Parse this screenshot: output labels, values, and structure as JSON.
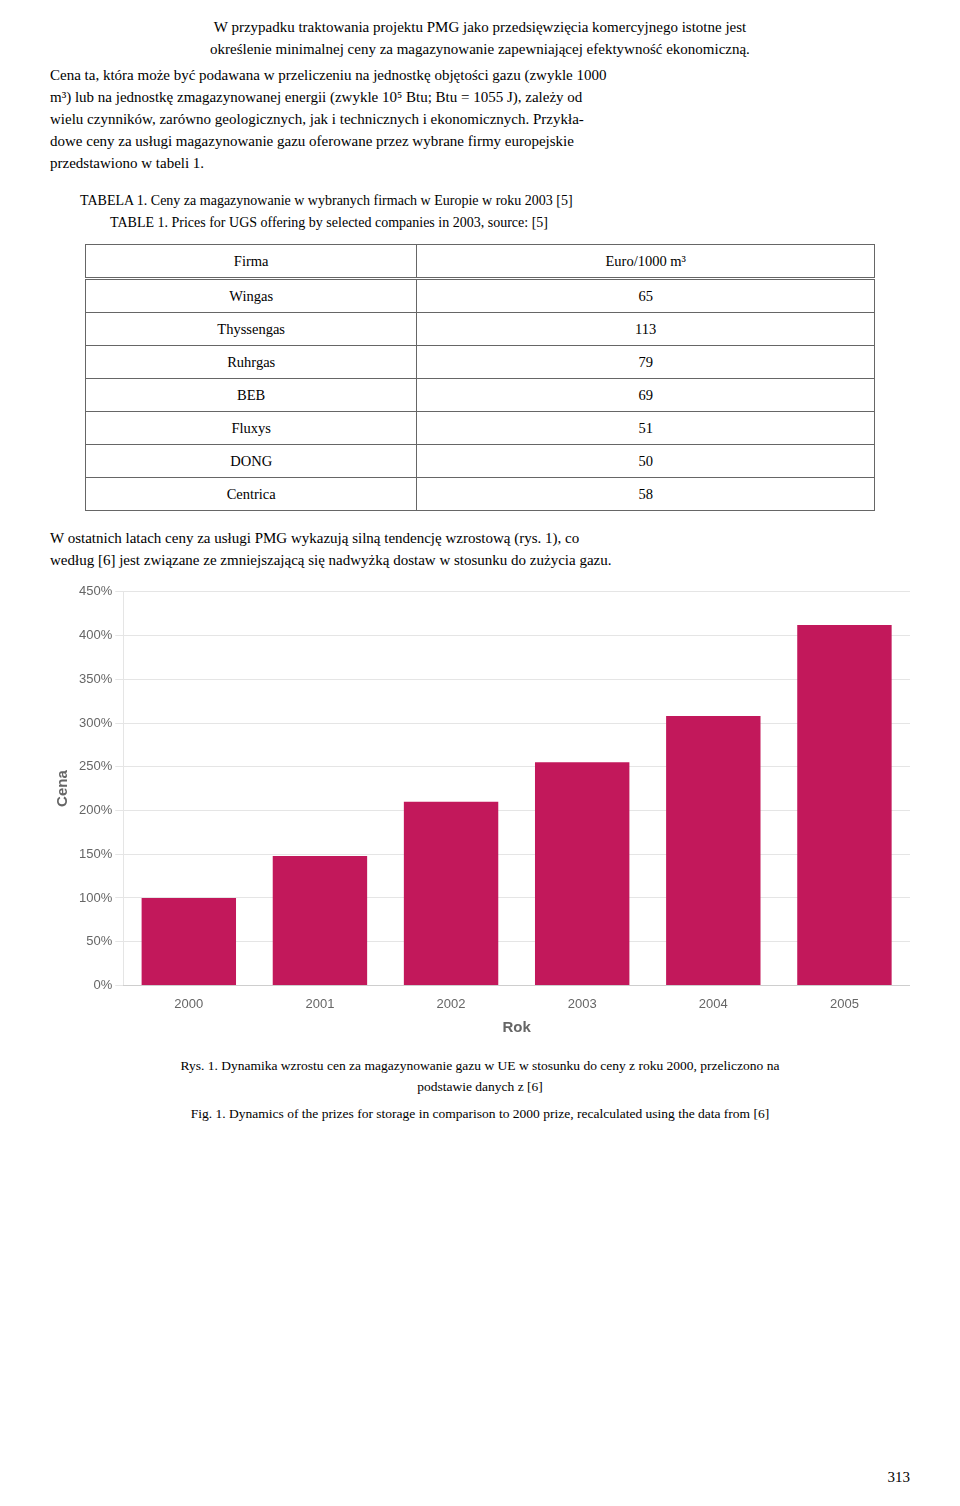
{
  "text_before": {
    "centered_lines": [
      "W przypadku traktowania projektu PMG jako przedsięwzięcia komercyjnego istotne jest",
      "określenie minimalnej ceny za magazynowanie zapewniającej efektywność ekonomiczną."
    ],
    "lines": [
      "Cena ta, która może być podawana w przeliczeniu na jednostkę objętości gazu (zwykle 1000",
      "m³) lub na jednostkę zmagazynowanej energii (zwykle 10⁵ Btu; Btu = 1055 J), zależy od",
      "wielu czynników, zarówno geologicznych, jak i technicznych i ekonomicznych. Przykła-",
      "dowe ceny za usługi magazynowanie gazu oferowane przez wybrane firmy europejskie",
      "przedstawiono w tabeli 1."
    ]
  },
  "table": {
    "captions": [
      "TABELA 1. Ceny za magazynowanie w wybranych firmach w Europie w roku 2003 [5]",
      "TABLE 1. Prices for UGS offering by selected companies in 2003, source: [5]"
    ],
    "columns": [
      "Firma",
      "Euro/1000 m³"
    ],
    "rows": [
      [
        "Wingas",
        65
      ],
      [
        "Thyssengas",
        113
      ],
      [
        "Ruhrgas",
        79
      ],
      [
        "BEB",
        69
      ],
      [
        "Fluxys",
        51
      ],
      [
        "DONG",
        50
      ],
      [
        "Centrica",
        58
      ]
    ]
  },
  "text_after": [
    "W ostatnich latach ceny za usługi PMG wykazują silną tendencję wzrostową (rys. 1), co",
    "według [6] jest związane ze zmniejszającą się nadwyżką dostaw w stosunku do zużycia gazu."
  ],
  "chart_data": {
    "type": "bar",
    "categories": [
      "2000",
      "2001",
      "2002",
      "2003",
      "2004",
      "2005"
    ],
    "values": [
      100,
      148,
      210,
      255,
      308,
      412
    ],
    "color": "#C2185B",
    "xlabel": "Rok",
    "ylabel": "Cena",
    "ylim": [
      0,
      450
    ],
    "yticks": [
      {
        "value": 0,
        "label": "0%"
      },
      {
        "value": 50,
        "label": "50%"
      },
      {
        "value": 100,
        "label": "100%"
      },
      {
        "value": 150,
        "label": "150%"
      },
      {
        "value": 200,
        "label": "200%"
      },
      {
        "value": 250,
        "label": "250%"
      },
      {
        "value": 300,
        "label": "300%"
      },
      {
        "value": 350,
        "label": "350%"
      },
      {
        "value": 400,
        "label": "400%"
      },
      {
        "value": 450,
        "label": "450%"
      }
    ],
    "grid": true
  },
  "captions": [
    "Rys. 1. Dynamika wzrostu cen za magazynowanie gazu w UE w stosunku do ceny z roku 2000, przeliczono na",
    "podstawie danych z [6]",
    "Fig. 1. Dynamics of the prizes for storage in comparison to 2000 prize, recalculated using the data from [6]"
  ],
  "page_number": "313"
}
